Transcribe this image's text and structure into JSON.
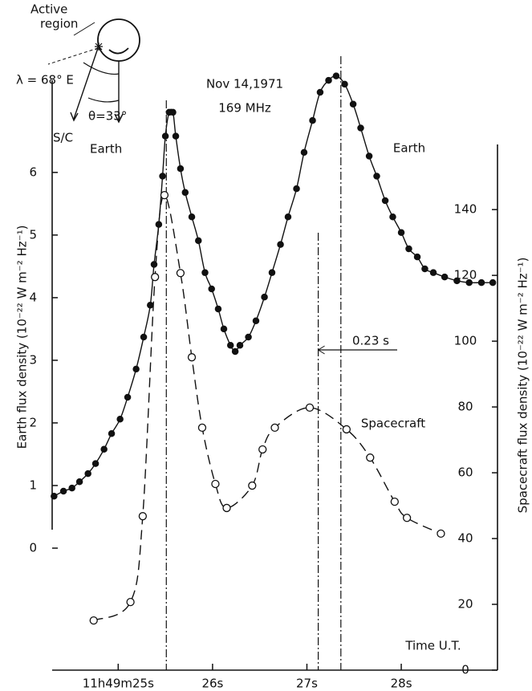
{
  "chart_data": {
    "type": "scatter",
    "title": "Nov 14,1971",
    "subtitle": "169 MHz",
    "x_label": "Time U.T.",
    "y_label": "Earth flux density (10⁻²² W m⁻² Hz⁻¹)",
    "y2_label": "Spacecraft flux density (10⁻²² W m⁻² Hz⁻¹)",
    "xlim": [
      24.3,
      29.02
    ],
    "xticks": [
      {
        "value": 25,
        "label": "11h49m25s"
      },
      {
        "value": 26,
        "label": "26s"
      },
      {
        "value": 27,
        "label": "27s"
      },
      {
        "value": 28,
        "label": "28s"
      }
    ],
    "ylim": [
      0,
      7.6
    ],
    "yticks": [
      0,
      1,
      2,
      3,
      4,
      5,
      6
    ],
    "y2lim": [
      0,
      182
    ],
    "y2ticks": [
      0,
      20,
      40,
      60,
      80,
      100,
      120,
      140
    ],
    "series": [
      {
        "name": "Earth",
        "color": "#111111",
        "marker": "filled",
        "line": "solid",
        "x": [
          24.32,
          24.42,
          24.51,
          24.59,
          24.68,
          24.76,
          24.85,
          24.93,
          25.02,
          25.1,
          25.19,
          25.27,
          25.34,
          25.38,
          25.43,
          25.47,
          25.5,
          25.54,
          25.58,
          25.61,
          25.66,
          25.71,
          25.78,
          25.85,
          25.92,
          25.99,
          26.06,
          26.12,
          26.19,
          26.24,
          26.29,
          26.38,
          26.46,
          26.55,
          26.63,
          26.72,
          26.8,
          26.89,
          26.97,
          27.06,
          27.14,
          27.23,
          27.31,
          27.4,
          27.49,
          27.57,
          27.66,
          27.74,
          27.83,
          27.91,
          28.0,
          28.08,
          28.17,
          28.25,
          28.34,
          28.46,
          28.59,
          28.72,
          28.85,
          28.97
        ],
        "values": [
          0.83,
          0.91,
          0.96,
          1.06,
          1.19,
          1.35,
          1.58,
          1.83,
          2.06,
          2.41,
          2.86,
          3.37,
          3.88,
          4.53,
          5.17,
          5.94,
          6.58,
          6.96,
          6.96,
          6.58,
          6.06,
          5.68,
          5.29,
          4.91,
          4.4,
          4.14,
          3.82,
          3.5,
          3.24,
          3.14,
          3.24,
          3.37,
          3.63,
          4.01,
          4.4,
          4.85,
          5.29,
          5.74,
          6.32,
          6.83,
          7.28,
          7.47,
          7.54,
          7.41,
          7.09,
          6.71,
          6.26,
          5.94,
          5.55,
          5.29,
          5.04,
          4.78,
          4.65,
          4.46,
          4.4,
          4.33,
          4.27,
          4.24,
          4.24,
          4.24
        ]
      },
      {
        "name": "Spacecraft",
        "color": "#111111",
        "marker": "open",
        "line": "dashed",
        "axis": "y2",
        "x": [
          24.74,
          25.13,
          25.26,
          25.39,
          25.49,
          25.66,
          25.78,
          25.89,
          26.03,
          26.15,
          26.42,
          26.53,
          26.66,
          27.03,
          27.42,
          27.67,
          27.93,
          28.06,
          28.42
        ],
        "values": [
          15.1,
          20.7,
          46.8,
          119.5,
          144.4,
          120.7,
          95.1,
          73.7,
          56.6,
          49.3,
          56.1,
          67.1,
          73.7,
          79.8,
          73.2,
          64.6,
          51.2,
          46.3,
          41.5
        ]
      }
    ],
    "vlines": [
      25.51,
      27.12,
      27.36
    ],
    "delay_label": "0.23 s",
    "inset": {
      "active": "Active",
      "region": "region",
      "lambda": "λ = 68° E",
      "theta": "θ=33°",
      "sc": "S/C",
      "earth": "Earth"
    }
  }
}
